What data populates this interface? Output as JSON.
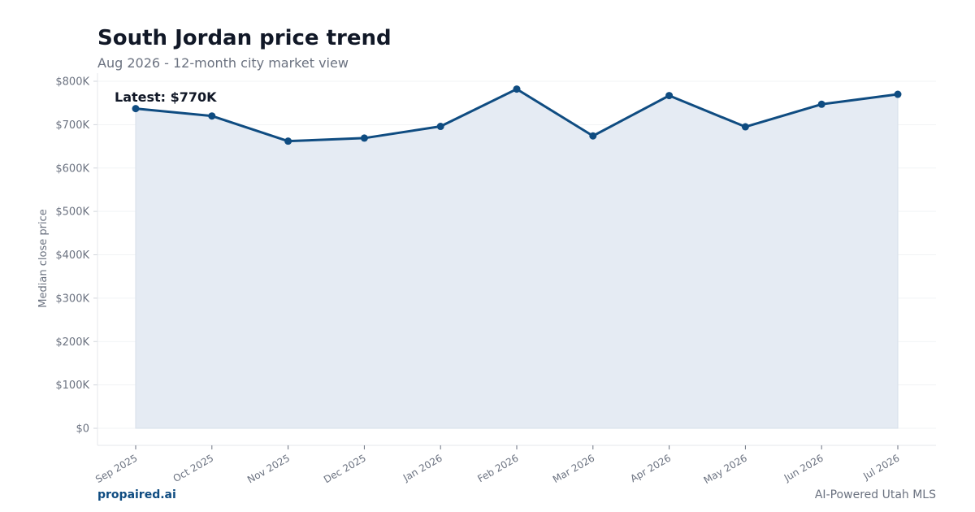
{
  "header": {
    "title": "South Jordan price trend",
    "subtitle": "Aug 2026 - 12-month city market view"
  },
  "footer": {
    "brand": "propaired.ai",
    "tagline": "AI-Powered Utah MLS"
  },
  "colors": {
    "line": "#0f4c81",
    "fill": "#e5ebf3",
    "grid": "#f1f3f5",
    "axis_text": "#6b7280"
  },
  "chart_data": {
    "type": "area",
    "title": "South Jordan price trend",
    "subtitle": "Aug 2026 - 12-month city market view",
    "xlabel": "",
    "ylabel": "Median close price",
    "x": [
      "Sep 2025",
      "Oct 2025",
      "Nov 2025",
      "Dec 2025",
      "Jan 2026",
      "Feb 2026",
      "Mar 2026",
      "Apr 2026",
      "May 2026",
      "Jun 2026",
      "Jul 2026"
    ],
    "values": [
      737000,
      720000,
      662000,
      669000,
      696000,
      782000,
      674000,
      767000,
      695000,
      747000,
      770000
    ],
    "ylim": [
      0,
      800000
    ],
    "yticks": [
      0,
      100000,
      200000,
      300000,
      400000,
      500000,
      600000,
      700000,
      800000
    ],
    "ytick_labels": [
      "$0",
      "$100K",
      "$200K",
      "$300K",
      "$400K",
      "$500K",
      "$600K",
      "$700K",
      "$800K"
    ],
    "annotation": "Latest: $770K",
    "grid": true,
    "legend": "none"
  }
}
